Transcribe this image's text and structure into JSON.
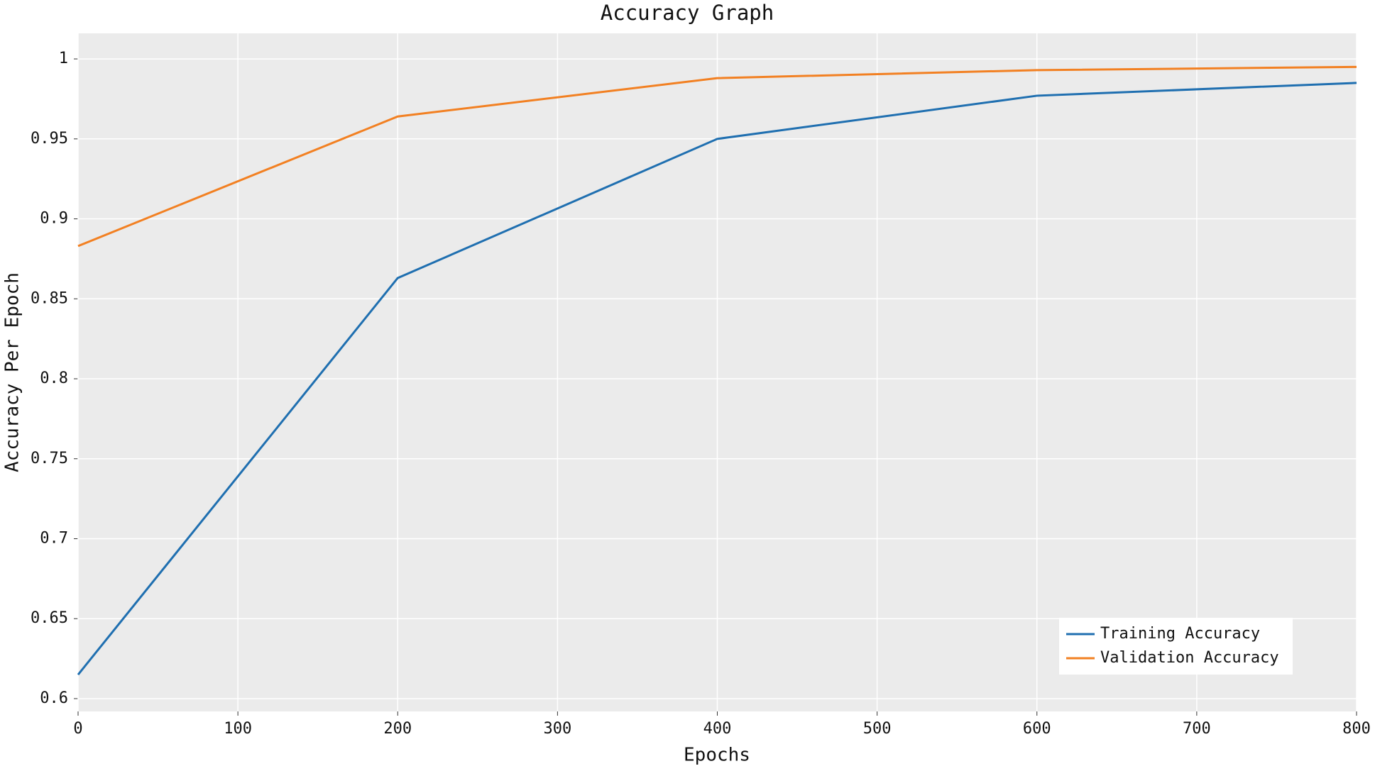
{
  "chart_data": {
    "type": "line",
    "title": "Accuracy Graph",
    "xlabel": "Epochs",
    "ylabel": "Accuracy Per Epoch",
    "x": [
      0,
      200,
      400,
      600,
      800
    ],
    "series": [
      {
        "name": "Training Accuracy",
        "color": "#1f6fb0",
        "values": [
          0.615,
          0.863,
          0.95,
          0.977,
          0.985
        ]
      },
      {
        "name": "Validation Accuracy",
        "color": "#f28022",
        "values": [
          0.883,
          0.964,
          0.988,
          0.993,
          0.995
        ]
      }
    ],
    "xlim": [
      0,
      800
    ],
    "xticks": [
      0,
      100,
      200,
      300,
      400,
      500,
      600,
      700,
      800
    ],
    "ylim": [
      0.592,
      1.016
    ],
    "yticks": [
      0.6,
      0.65,
      0.7,
      0.75,
      0.8,
      0.85,
      0.9,
      0.95,
      1
    ],
    "grid": true,
    "legend": "lower right"
  }
}
